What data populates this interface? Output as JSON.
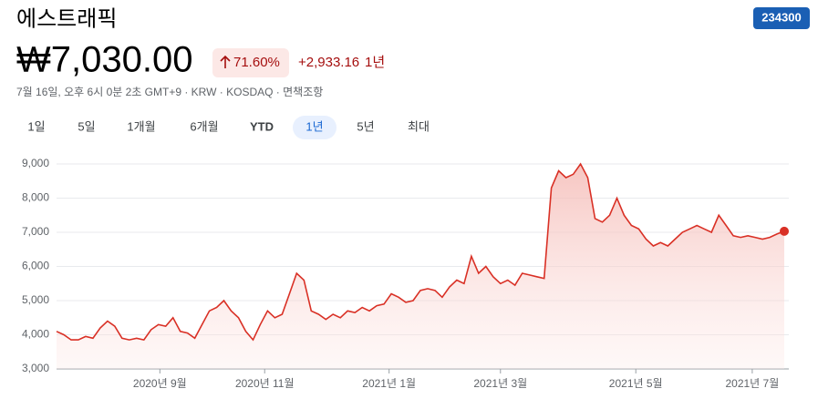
{
  "header": {
    "title": "에스트래픽",
    "ticker": "234300",
    "price": "₩7,030.00",
    "change_percent": "71.60%",
    "change": "+2,933.16",
    "period": "1년",
    "info": "7월 16일, 오후 6시 0분 2초 GMT+9 · KRW · KOSDAQ · 면책조항"
  },
  "tabs": [
    "1일",
    "5일",
    "1개월",
    "6개월",
    "YTD",
    "1년",
    "5년",
    "최대"
  ],
  "selected_tab": "1년",
  "chart_data": {
    "type": "area",
    "color": "#d93025",
    "values": [
      4100,
      4000,
      3850,
      3850,
      3950,
      3900,
      4200,
      4400,
      4250,
      3900,
      3850,
      3900,
      3850,
      4150,
      4300,
      4250,
      4500,
      4100,
      4050,
      3900,
      4300,
      4700,
      4800,
      5000,
      4700,
      4500,
      4100,
      3850,
      4300,
      4700,
      4500,
      4600,
      5200,
      5800,
      5600,
      4700,
      4600,
      4450,
      4600,
      4500,
      4700,
      4650,
      4800,
      4700,
      4850,
      4900,
      5200,
      5100,
      4950,
      5000,
      5300,
      5350,
      5300,
      5100,
      5400,
      5600,
      5500,
      6300,
      5800,
      6000,
      5700,
      5500,
      5600,
      5450,
      5800,
      5750,
      5700,
      5650,
      8300,
      8800,
      8600,
      8700,
      9000,
      8600,
      7400,
      7300,
      7500,
      8000,
      7500,
      7200,
      7100,
      6800,
      6600,
      6700,
      6600,
      6800,
      7000,
      7100,
      7200,
      7100,
      7000,
      7500,
      7200,
      6900,
      6850,
      6900,
      6850,
      6800,
      6850,
      6950,
      7030
    ],
    "xlim": [
      0,
      100
    ],
    "xticks": [
      {
        "value": 14.2,
        "label": "2020년 9월"
      },
      {
        "value": 28.6,
        "label": "2020년 11월"
      },
      {
        "value": 45.7,
        "label": "2021년 1월"
      },
      {
        "value": 61.0,
        "label": "2021년 3월"
      },
      {
        "value": 79.6,
        "label": "2021년 5월"
      },
      {
        "value": 95.6,
        "label": "2021년 7월"
      }
    ],
    "ylim": [
      3000,
      9000
    ],
    "yticks": [
      {
        "value": 3000,
        "label": "3,000"
      },
      {
        "value": 4000,
        "label": "4,000"
      },
      {
        "value": 5000,
        "label": "5,000"
      },
      {
        "value": 6000,
        "label": "6,000"
      },
      {
        "value": 7000,
        "label": "7,000"
      },
      {
        "value": 8000,
        "label": "8,000"
      },
      {
        "value": 9000,
        "label": "9,000"
      }
    ],
    "grid": true
  }
}
